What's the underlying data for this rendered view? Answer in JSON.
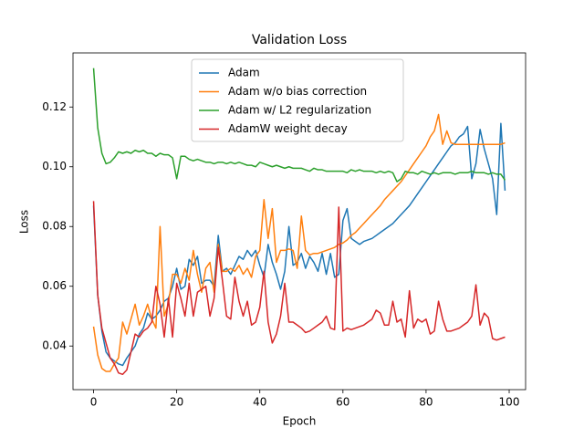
{
  "chart_data": {
    "type": "line",
    "title": "Validation Loss",
    "x_label": "Epoch",
    "y_label": "Loss",
    "xlim": [
      -4.95,
      103.95
    ],
    "ylim": [
      0.0254,
      0.1381
    ],
    "xticks": [
      0,
      20,
      40,
      60,
      80,
      100
    ],
    "yticks": [
      0.04,
      0.06,
      0.08,
      {
        "value": 0.1,
        "label": "0.10"
      },
      0.12
    ],
    "legend": "upper center",
    "x": [
      0,
      1,
      2,
      3,
      4,
      5,
      6,
      7,
      8,
      9,
      10,
      11,
      12,
      13,
      14,
      15,
      16,
      17,
      18,
      19,
      20,
      21,
      22,
      23,
      24,
      25,
      26,
      27,
      28,
      29,
      30,
      31,
      32,
      33,
      34,
      35,
      36,
      37,
      38,
      39,
      40,
      41,
      42,
      43,
      44,
      45,
      46,
      47,
      48,
      49,
      50,
      51,
      52,
      53,
      54,
      55,
      56,
      57,
      58,
      59,
      60,
      61,
      62,
      63,
      64,
      65,
      66,
      67,
      68,
      69,
      70,
      71,
      72,
      73,
      74,
      75,
      76,
      77,
      78,
      79,
      80,
      81,
      82,
      83,
      84,
      85,
      86,
      87,
      88,
      89,
      90,
      91,
      92,
      93,
      94,
      95,
      96,
      97,
      98,
      99
    ],
    "series": [
      {
        "name": "Adam",
        "color": "#1f77b4",
        "values": [
          0.087,
          0.057,
          0.045,
          0.038,
          0.036,
          0.035,
          0.034,
          0.0335,
          0.036,
          0.038,
          0.04,
          0.044,
          0.046,
          0.051,
          0.049,
          0.05,
          0.052,
          0.055,
          0.056,
          0.06,
          0.066,
          0.059,
          0.06,
          0.069,
          0.067,
          0.07,
          0.061,
          0.062,
          0.062,
          0.06,
          0.077,
          0.065,
          0.066,
          0.064,
          0.067,
          0.07,
          0.069,
          0.072,
          0.07,
          0.072,
          0.067,
          0.063,
          0.074,
          0.068,
          0.064,
          0.059,
          0.065,
          0.08,
          0.067,
          0.068,
          0.071,
          0.066,
          0.07,
          0.068,
          0.065,
          0.071,
          0.064,
          0.071,
          0.063,
          0.064,
          0.082,
          0.086,
          0.076,
          0.075,
          0.074,
          0.075,
          0.0755,
          0.076,
          0.077,
          0.078,
          0.079,
          0.08,
          0.081,
          0.0825,
          0.084,
          0.0855,
          0.087,
          0.089,
          0.091,
          0.093,
          0.095,
          0.097,
          0.099,
          0.101,
          0.103,
          0.105,
          0.107,
          0.108,
          0.11,
          0.111,
          0.1135,
          0.096,
          0.101,
          0.1125,
          0.106,
          0.101,
          0.096,
          0.084,
          0.1145,
          0.092
        ]
      },
      {
        "name": "Adam w/o bias correction",
        "color": "#ff7f0e",
        "values": [
          0.0465,
          0.037,
          0.0325,
          0.0315,
          0.0315,
          0.034,
          0.036,
          0.048,
          0.044,
          0.049,
          0.054,
          0.047,
          0.05,
          0.054,
          0.049,
          0.046,
          0.08,
          0.05,
          0.054,
          0.064,
          0.064,
          0.061,
          0.066,
          0.062,
          0.072,
          0.064,
          0.058,
          0.066,
          0.068,
          0.058,
          0.074,
          0.065,
          0.065,
          0.066,
          0.065,
          0.067,
          0.064,
          0.066,
          0.063,
          0.07,
          0.072,
          0.089,
          0.076,
          0.086,
          0.068,
          0.072,
          0.072,
          0.0725,
          0.072,
          0.066,
          0.0835,
          0.072,
          0.0705,
          0.071,
          0.071,
          0.0715,
          0.072,
          0.0725,
          0.073,
          0.074,
          0.0745,
          0.0755,
          0.077,
          0.078,
          0.0795,
          0.081,
          0.0825,
          0.084,
          0.0855,
          0.087,
          0.089,
          0.0905,
          0.092,
          0.0935,
          0.095,
          0.097,
          0.099,
          0.101,
          0.103,
          0.105,
          0.107,
          0.11,
          0.112,
          0.1175,
          0.1075,
          0.112,
          0.108,
          0.1075,
          0.1075,
          0.1075,
          0.1075,
          0.1075,
          0.1075,
          0.1075,
          0.1075,
          0.1075,
          0.1075,
          0.1075,
          0.1075,
          0.108
        ]
      },
      {
        "name": "Adam w/ L2 regularization",
        "color": "#2ca02c",
        "values": [
          0.133,
          0.113,
          0.1045,
          0.101,
          0.1015,
          0.103,
          0.105,
          0.1045,
          0.105,
          0.1045,
          0.1055,
          0.105,
          0.1055,
          0.1045,
          0.1045,
          0.1035,
          0.1045,
          0.104,
          0.104,
          0.103,
          0.096,
          0.1035,
          0.1035,
          0.1025,
          0.102,
          0.1025,
          0.102,
          0.1015,
          0.1015,
          0.101,
          0.1015,
          0.1015,
          0.101,
          0.1015,
          0.101,
          0.1015,
          0.101,
          0.1005,
          0.1005,
          0.1,
          0.1015,
          0.101,
          0.1005,
          0.1,
          0.1005,
          0.1,
          0.0995,
          0.1,
          0.0995,
          0.0995,
          0.0995,
          0.099,
          0.0985,
          0.0995,
          0.099,
          0.099,
          0.0985,
          0.0985,
          0.0985,
          0.0985,
          0.0985,
          0.098,
          0.099,
          0.0985,
          0.099,
          0.0985,
          0.0985,
          0.0985,
          0.098,
          0.0985,
          0.098,
          0.0985,
          0.098,
          0.095,
          0.096,
          0.0985,
          0.098,
          0.098,
          0.0975,
          0.0985,
          0.098,
          0.0975,
          0.098,
          0.0975,
          0.098,
          0.098,
          0.098,
          0.0975,
          0.098,
          0.098,
          0.098,
          0.0985,
          0.098,
          0.098,
          0.098,
          0.0975,
          0.098,
          0.0975,
          0.0975,
          0.0955
        ]
      },
      {
        "name": "AdamW weight decay",
        "color": "#d62728",
        "values": [
          0.0885,
          0.057,
          0.046,
          0.041,
          0.036,
          0.034,
          0.031,
          0.0305,
          0.032,
          0.038,
          0.044,
          0.043,
          0.045,
          0.046,
          0.048,
          0.06,
          0.054,
          0.043,
          0.056,
          0.043,
          0.061,
          0.056,
          0.05,
          0.061,
          0.05,
          0.058,
          0.059,
          0.06,
          0.05,
          0.056,
          0.073,
          0.062,
          0.05,
          0.049,
          0.063,
          0.055,
          0.05,
          0.055,
          0.047,
          0.048,
          0.053,
          0.065,
          0.048,
          0.041,
          0.044,
          0.05,
          0.061,
          0.048,
          0.048,
          0.047,
          0.046,
          0.0445,
          0.045,
          0.046,
          0.047,
          0.048,
          0.05,
          0.046,
          0.0455,
          0.0865,
          0.045,
          0.046,
          0.0455,
          0.046,
          0.0465,
          0.047,
          0.048,
          0.049,
          0.052,
          0.051,
          0.047,
          0.047,
          0.055,
          0.048,
          0.049,
          0.043,
          0.0585,
          0.046,
          0.049,
          0.048,
          0.049,
          0.044,
          0.045,
          0.055,
          0.049,
          0.045,
          0.045,
          0.0455,
          0.046,
          0.047,
          0.048,
          0.05,
          0.0605,
          0.047,
          0.051,
          0.0495,
          0.0425,
          0.042,
          0.0425,
          0.043
        ]
      }
    ]
  }
}
